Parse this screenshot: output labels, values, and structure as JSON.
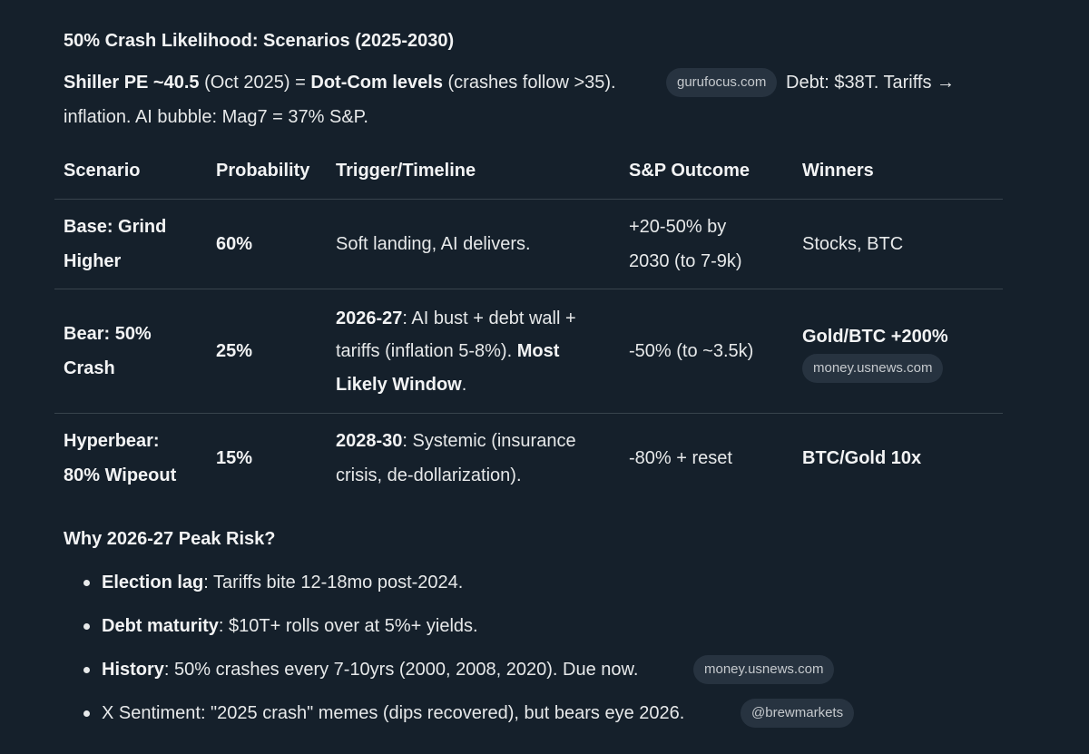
{
  "title": "50% Crash Likelihood: Scenarios (2025-2030)",
  "intro": {
    "shiller_bold": "Shiller PE ~40.5",
    "shiller_rest": " (Oct 2025) = ",
    "dotcom_bold": "Dot-Com levels",
    "dotcom_rest": " (crashes follow >35).",
    "source_chip": "gurufocus.com",
    "debt_text": "Debt: $38T. Tariffs →",
    "line2": "inflation. AI bubble: Mag7 = 37% S&P."
  },
  "table": {
    "headers": [
      "Scenario",
      "Probability",
      "Trigger/Timeline",
      "S&P Outcome",
      "Winners"
    ],
    "rows": [
      {
        "scenario": [
          "Base: Grind",
          "Higher"
        ],
        "probability": "60%",
        "trigger": "Soft landing, AI delivers.",
        "outcome": [
          "+20-50% by",
          "2030 (to 7-9k)"
        ],
        "winners": "Stocks, BTC"
      },
      {
        "scenario": [
          "Bear: 50%",
          "Crash"
        ],
        "probability": "25%",
        "trigger_line1_bold": "2026-27",
        "trigger_line1_rest": ": AI bust + debt wall +",
        "trigger_line2_rest": "tariffs (inflation 5-8%). ",
        "trigger_line2_bold": "Most",
        "trigger_line3_bold": "Likely Window",
        "trigger_line3_rest": ".",
        "outcome": "-50% (to ~3.5k)",
        "winners": "Gold/BTC +200%",
        "winners_chip": "money.usnews.com"
      },
      {
        "scenario": [
          "Hyperbear:",
          "80% Wipeout"
        ],
        "probability": "15%",
        "trigger_line1_bold": "2028-30",
        "trigger_line1_rest": ": Systemic (insurance",
        "trigger_line2": "crisis, de-dollarization).",
        "outcome": "-80% + reset",
        "winners": "BTC/Gold 10x"
      }
    ]
  },
  "why": {
    "heading": "Why 2026-27 Peak Risk?",
    "bullets": [
      {
        "bold": "Election lag",
        "rest": ": Tariffs bite 12-18mo post-2024."
      },
      {
        "bold": "Debt maturity",
        "rest": ": $10T+ rolls over at 5%+ yields."
      },
      {
        "bold": "History",
        "rest": ": 50% crashes every 7-10yrs (2000, 2008, 2020). Due now.",
        "chip": "money.usnews.com"
      },
      {
        "rest": "X Sentiment: \"2025 crash\" memes (dips recovered), but bears eye 2026.",
        "chip": "@brewmarkets"
      }
    ]
  }
}
